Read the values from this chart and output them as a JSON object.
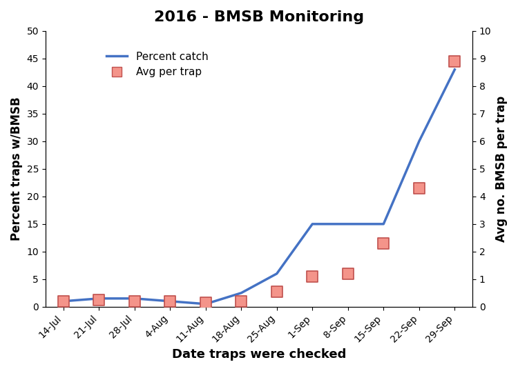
{
  "title": "2016 - BMSB Monitoring",
  "xlabel": "Date traps were checked",
  "ylabel_left": "Percent traps w/BMSB",
  "ylabel_right": "Avg no. BMSB per trap",
  "legend_line": "Percent catch",
  "legend_marker": "Avg per trap",
  "dates": [
    "14-Jul",
    "21-Jul",
    "28-Jul",
    "4-Aug",
    "11-Aug",
    "18-Aug",
    "25-Aug",
    "1-Sep",
    "8-Sep",
    "15-Sep",
    "22-Sep",
    "29-Sep"
  ],
  "percent_catch": [
    1.0,
    1.5,
    1.5,
    1.0,
    0.5,
    2.5,
    6.0,
    15.0,
    15.0,
    15.0,
    30.0,
    43.0
  ],
  "avg_per_trap": [
    0.2,
    0.25,
    0.2,
    0.2,
    0.15,
    0.2,
    0.55,
    1.1,
    1.2,
    2.3,
    4.3,
    8.9
  ],
  "ylim_left": [
    0,
    50
  ],
  "ylim_right": [
    0,
    10
  ],
  "yticks_left": [
    0,
    5,
    10,
    15,
    20,
    25,
    30,
    35,
    40,
    45,
    50
  ],
  "yticks_right": [
    0,
    1,
    2,
    3,
    4,
    5,
    6,
    7,
    8,
    9,
    10
  ],
  "line_color": "#4472C4",
  "marker_facecolor": "#F4948A",
  "marker_edgecolor": "#C0504D",
  "background_color": "#FFFFFF",
  "title_fontsize": 16,
  "axis_label_fontsize": 12,
  "tick_fontsize": 10,
  "legend_fontsize": 11
}
